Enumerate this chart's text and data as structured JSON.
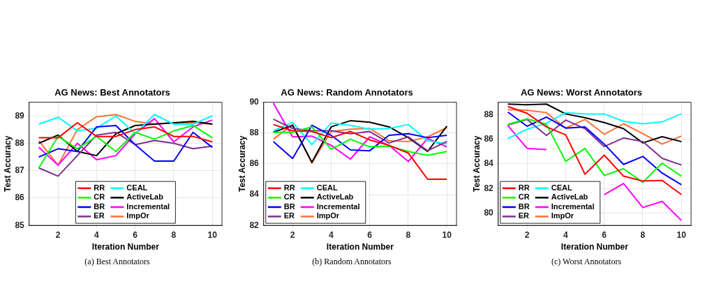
{
  "chart_data": [
    {
      "type": "line",
      "title": "AG News: Best Annotators",
      "xlabel": "Iteration Number",
      "ylabel": "Test Accuracy",
      "x": [
        1,
        2,
        3,
        4,
        5,
        6,
        7,
        8,
        9,
        10
      ],
      "xlim": [
        0.5,
        10.5
      ],
      "xticks": [
        2,
        4,
        6,
        8,
        10
      ],
      "ylim": [
        85,
        89.5
      ],
      "yticks": [
        85,
        86,
        87,
        88,
        89
      ],
      "grid": true,
      "legend": "bottom",
      "marker": "none",
      "line_style": "solid",
      "annotations": [
        "(a) Best Annotators"
      ],
      "series": [
        {
          "name": "RR",
          "color": "#ff0000",
          "values": [
            88.2,
            88.2,
            88.75,
            88.25,
            88.25,
            88.5,
            88.6,
            88.25,
            88.25,
            88.05
          ]
        },
        {
          "name": "CR",
          "color": "#00ff00",
          "values": [
            87.1,
            88.25,
            87.8,
            88.25,
            87.7,
            88.4,
            88.15,
            88.45,
            88.65,
            88.2
          ]
        },
        {
          "name": "BR",
          "color": "#0000ff",
          "values": [
            87.5,
            87.8,
            87.7,
            88.6,
            88.65,
            87.95,
            87.35,
            87.35,
            88.4,
            87.85
          ]
        },
        {
          "name": "ER",
          "color": "#7e2f8e",
          "values": [
            87.1,
            86.8,
            87.55,
            88.3,
            88.4,
            87.95,
            88.1,
            88.0,
            87.8,
            87.9
          ]
        },
        {
          "name": "CEAL",
          "color": "#00ffff",
          "values": [
            88.7,
            88.95,
            88.45,
            88.55,
            89.0,
            88.35,
            89.05,
            88.7,
            88.7,
            89.0
          ]
        },
        {
          "name": "ActiveLab",
          "color": "#000000",
          "values": [
            88.0,
            88.3,
            87.7,
            87.55,
            88.35,
            88.65,
            88.7,
            88.75,
            88.8,
            88.7
          ]
        },
        {
          "name": "Incremental",
          "color": "#ff00ff",
          "values": [
            87.85,
            87.2,
            88.0,
            87.4,
            87.55,
            88.35,
            88.9,
            88.05,
            88.6,
            88.85
          ]
        },
        {
          "name": "ImpOr",
          "color": "#ff7236",
          "values": [
            88.1,
            87.2,
            88.5,
            88.97,
            89.05,
            88.8,
            88.7,
            88.75,
            88.75,
            88.7
          ]
        }
      ]
    },
    {
      "type": "line",
      "title": "AG News: Random Annotators",
      "xlabel": "Iteration Number",
      "ylabel": "Test Accuracy",
      "x": [
        1,
        2,
        3,
        4,
        5,
        6,
        7,
        8,
        9,
        10
      ],
      "xlim": [
        0.5,
        10.5
      ],
      "xticks": [
        2,
        4,
        6,
        8,
        10
      ],
      "ylim": [
        82,
        90
      ],
      "yticks": [
        82,
        84,
        86,
        88,
        90
      ],
      "grid": true,
      "legend": "bottom left",
      "marker": "none",
      "line_style": "solid",
      "annotations": [
        "(b) Random Annotators"
      ],
      "series": [
        {
          "name": "RR",
          "color": "#ff0000",
          "values": [
            88.55,
            88.15,
            88.1,
            87.7,
            88.1,
            87.55,
            87.2,
            86.7,
            85.0,
            85.0
          ]
        },
        {
          "name": "CR",
          "color": "#00ff00",
          "values": [
            88.05,
            88.05,
            88.4,
            86.95,
            87.6,
            87.1,
            87.15,
            86.8,
            86.55,
            86.8
          ]
        },
        {
          "name": "BR",
          "color": "#0000ff",
          "values": [
            87.45,
            86.35,
            88.5,
            87.85,
            86.9,
            86.85,
            87.85,
            87.95,
            87.7,
            87.85
          ]
        },
        {
          "name": "ER",
          "color": "#7e2f8e",
          "values": [
            88.9,
            88.3,
            88.15,
            88.15,
            87.95,
            88.1,
            87.35,
            87.75,
            86.85,
            87.45
          ]
        },
        {
          "name": "CEAL",
          "color": "#00ffff",
          "values": [
            88.15,
            88.7,
            87.25,
            88.65,
            88.5,
            88.25,
            88.3,
            88.55,
            87.5,
            87.3
          ]
        },
        {
          "name": "ActiveLab",
          "color": "#000000",
          "values": [
            88.05,
            88.5,
            86.1,
            88.4,
            88.8,
            88.7,
            88.4,
            87.7,
            86.8,
            88.45
          ]
        },
        {
          "name": "Incremental",
          "color": "#ff00ff",
          "values": [
            89.95,
            87.75,
            87.8,
            87.2,
            86.3,
            87.75,
            87.2,
            86.15,
            87.65,
            87.1
          ]
        },
        {
          "name": "ImpOr",
          "color": "#ff7236",
          "values": [
            87.6,
            88.55,
            86.05,
            88.1,
            88.25,
            88.3,
            87.5,
            87.45,
            87.75,
            88.35
          ]
        }
      ]
    },
    {
      "type": "line",
      "title": "AG News: Worst Annotators",
      "xlabel": "Iteration Number",
      "ylabel": "Test Accuracy",
      "x": [
        1,
        2,
        3,
        4,
        5,
        6,
        7,
        8,
        9,
        10
      ],
      "xlim": [
        0.5,
        10.5
      ],
      "xticks": [
        2,
        4,
        6,
        8,
        10
      ],
      "ylim": [
        79,
        89
      ],
      "yticks": [
        80,
        82,
        84,
        86,
        88
      ],
      "grid": true,
      "legend": "bottom left",
      "marker": "none",
      "line_style": "solid",
      "annotations": [
        "(c) Worst Annotators"
      ],
      "series": [
        {
          "name": "RR",
          "color": "#ff0000",
          "values": [
            88.65,
            88.1,
            87.0,
            86.35,
            83.15,
            84.7,
            83.0,
            82.6,
            82.65,
            81.5
          ]
        },
        {
          "name": "CR",
          "color": "#00ff00",
          "values": [
            87.2,
            87.65,
            87.2,
            84.2,
            85.25,
            83.05,
            83.6,
            82.5,
            84.05,
            83.0
          ]
        },
        {
          "name": "BR",
          "color": "#0000ff",
          "values": [
            88.2,
            87.05,
            87.8,
            86.9,
            87.0,
            85.6,
            83.95,
            84.6,
            83.25,
            82.3
          ]
        },
        {
          "name": "ER",
          "color": "#7e2f8e",
          "values": [
            87.15,
            87.6,
            86.3,
            87.55,
            86.85,
            85.4,
            86.1,
            85.8,
            84.45,
            83.9
          ]
        },
        {
          "name": "CEAL",
          "color": "#00ffff",
          "values": [
            86.05,
            86.8,
            87.3,
            88.15,
            88.05,
            88.05,
            87.45,
            87.25,
            87.4,
            88.05
          ]
        },
        {
          "name": "ActiveLab",
          "color": "#000000",
          "values": [
            88.85,
            88.8,
            88.85,
            88.05,
            87.75,
            87.35,
            86.85,
            85.7,
            86.2,
            85.8
          ]
        },
        {
          "name": "Incremental",
          "color": "#ff00ff",
          "values": [
            87.1,
            85.25,
            85.15,
            null,
            null,
            81.5,
            82.4,
            80.45,
            80.95,
            79.4
          ]
        },
        {
          "name": "ImpOr",
          "color": "#ff7236",
          "values": [
            88.4,
            88.35,
            88.15,
            86.9,
            87.6,
            86.4,
            87.25,
            86.45,
            85.6,
            86.25
          ]
        }
      ]
    }
  ]
}
